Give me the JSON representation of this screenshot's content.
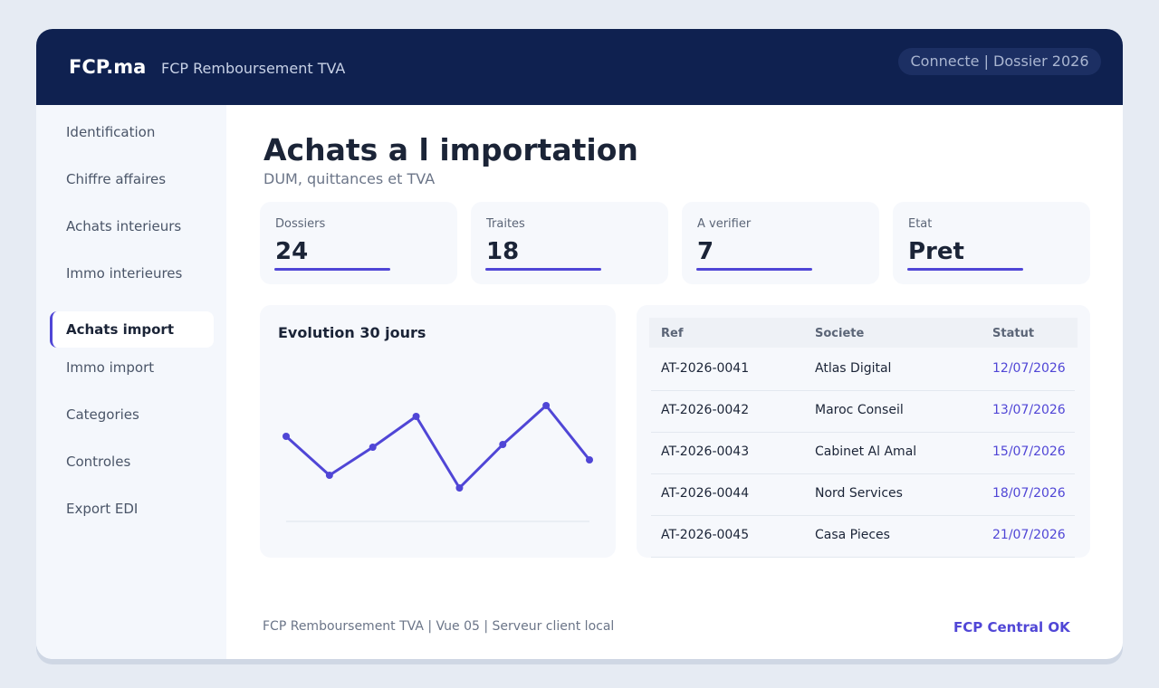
{
  "header": {
    "brand": "FCP.ma",
    "app_name": "FCP Remboursement TVA",
    "status": "Connecte | Dossier 2026"
  },
  "sidebar": {
    "items": [
      "Identification",
      "Chiffre affaires",
      "Achats interieurs",
      "Immo interieures",
      "Achats import",
      "Immo import",
      "Categories",
      "Controles",
      "Export EDI"
    ],
    "active": "Achats import"
  },
  "page": {
    "title": "Achats a l importation",
    "subtitle": "DUM, quittances et TVA"
  },
  "kpis": [
    {
      "label": "Dossiers",
      "value": "24"
    },
    {
      "label": "Traites",
      "value": "18"
    },
    {
      "label": "A verifier",
      "value": "7"
    },
    {
      "label": "Etat",
      "value": "Pret"
    }
  ],
  "chart": {
    "type": "line",
    "title": "Evolution 30 jours",
    "values": [
      94,
      51,
      82,
      116,
      37,
      85,
      128,
      68
    ],
    "ylim": [
      0,
      186
    ],
    "color": "#5046d6"
  },
  "table": {
    "columns": [
      "Ref",
      "Societe",
      "Statut"
    ],
    "rows": [
      [
        "AT-2026-0041",
        "Atlas Digital",
        "12/07/2026"
      ],
      [
        "AT-2026-0042",
        "Maroc Conseil",
        "13/07/2026"
      ],
      [
        "AT-2026-0043",
        "Cabinet Al Amal",
        "15/07/2026"
      ],
      [
        "AT-2026-0044",
        "Nord Services",
        "18/07/2026"
      ],
      [
        "AT-2026-0045",
        "Casa Pieces",
        "21/07/2026"
      ]
    ]
  },
  "footer": {
    "text": "FCP Remboursement TVA | Vue 05 | Serveur client local",
    "status": "FCP Central OK"
  }
}
